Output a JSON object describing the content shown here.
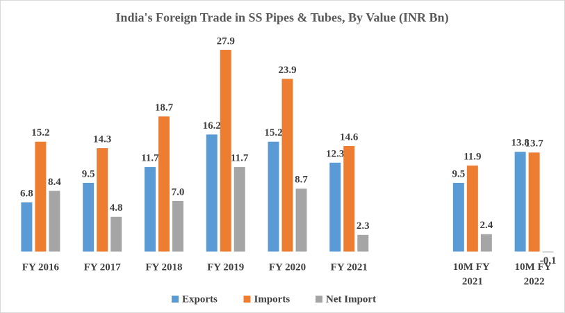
{
  "chart_data": {
    "type": "bar",
    "title": "India's Foreign Trade in SS Pipes & Tubes, By Value (INR Bn)",
    "categories": [
      "FY 2016",
      "FY 2017",
      "FY 2018",
      "FY 2019",
      "FY 2020",
      "FY 2021",
      null,
      "10M FY 2021",
      "10M FY 2022"
    ],
    "series": [
      {
        "name": "Exports",
        "color": "#5b9bd5",
        "values": [
          6.8,
          9.5,
          11.7,
          16.2,
          15.2,
          12.3,
          null,
          9.5,
          13.8
        ],
        "value_labels": [
          "6.8",
          "9.5",
          "11.7",
          "16.2",
          "15.2",
          "12.3",
          null,
          "9.5",
          "13.8"
        ]
      },
      {
        "name": "Imports",
        "color": "#ed7d31",
        "values": [
          15.2,
          14.3,
          18.7,
          27.9,
          23.9,
          14.6,
          null,
          11.9,
          13.7
        ],
        "value_labels": [
          "15.2",
          "14.3",
          "18.7",
          "27.9",
          "23.9",
          "14.6",
          null,
          "11.9",
          "13.7"
        ]
      },
      {
        "name": "Net Import",
        "color": "#a5a5a5",
        "values": [
          8.4,
          4.8,
          7.0,
          11.7,
          8.7,
          2.3,
          null,
          2.4,
          -0.1
        ],
        "value_labels": [
          "8.4",
          "4.8",
          "7.0",
          "11.7",
          "8.7",
          "2.3",
          null,
          "2.4",
          "-0.1"
        ]
      }
    ],
    "ylim": [
      -1,
      30
    ],
    "legend": "bottom"
  }
}
